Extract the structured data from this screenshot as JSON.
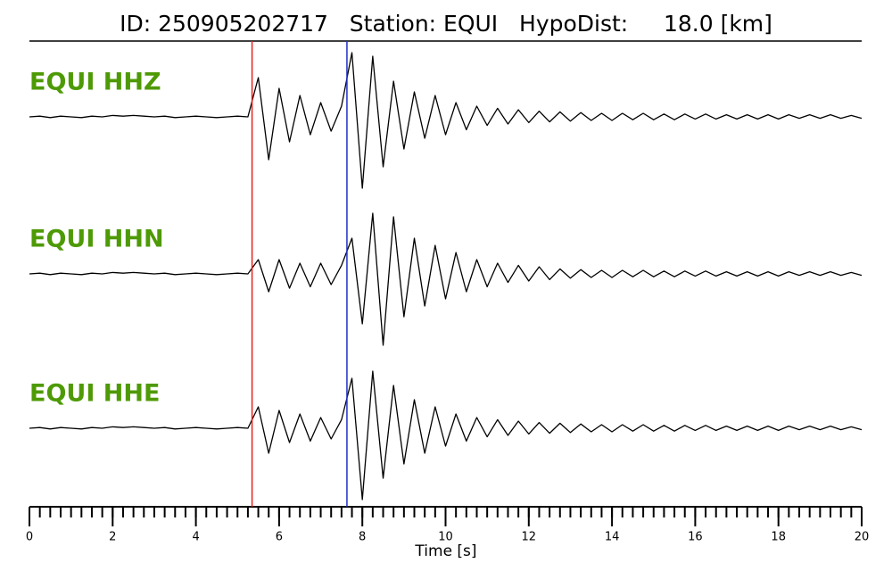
{
  "chart_data": {
    "type": "line",
    "title": "ID: 250905202717   Station: EQUI   HypoDist:     18.0 [km]",
    "xlabel": "Time [s]",
    "xlim": [
      0,
      20
    ],
    "xticks": [
      0,
      2,
      4,
      6,
      8,
      10,
      12,
      14,
      16,
      18,
      20
    ],
    "xminor_interval": 0.25,
    "ylim": [
      -1,
      1
    ],
    "label_color": "#4e9a06",
    "vlines": [
      {
        "x": 5.35,
        "color": "#e8201c"
      },
      {
        "x": 7.63,
        "color": "#2030c8"
      }
    ],
    "x": [
      0,
      0.25,
      0.5,
      0.75,
      1,
      1.25,
      1.5,
      1.75,
      2,
      2.25,
      2.5,
      2.75,
      3,
      3.25,
      3.5,
      3.75,
      4,
      4.25,
      4.5,
      4.75,
      5,
      5.25,
      5.5,
      5.75,
      6,
      6.25,
      6.5,
      6.75,
      7,
      7.25,
      7.5,
      7.75,
      8,
      8.25,
      8.5,
      8.75,
      9,
      9.25,
      9.5,
      9.75,
      10,
      10.25,
      10.5,
      10.75,
      11,
      11.25,
      11.5,
      11.75,
      12,
      12.25,
      12.5,
      12.75,
      13,
      13.25,
      13.5,
      13.75,
      14,
      14.25,
      14.5,
      14.75,
      15,
      15.25,
      15.5,
      15.75,
      16,
      16.25,
      16.5,
      16.75,
      17,
      17.25,
      17.5,
      17.75,
      18,
      18.25,
      18.5,
      18.75,
      19,
      19.25,
      19.5,
      19.75,
      20
    ],
    "series": [
      {
        "name": "EQUI HHZ",
        "color": "#000000",
        "values": [
          0,
          0.01,
          -0.01,
          0.01,
          0,
          -0.01,
          0.01,
          0,
          0.02,
          0.01,
          0.02,
          0.01,
          0,
          0.01,
          -0.01,
          0,
          0.01,
          0,
          -0.01,
          0,
          0.01,
          0,
          0.55,
          -0.6,
          0.4,
          -0.35,
          0.3,
          -0.25,
          0.2,
          -0.2,
          0.15,
          0.9,
          -1.0,
          0.85,
          -0.7,
          0.5,
          -0.45,
          0.35,
          -0.3,
          0.3,
          -0.25,
          0.2,
          -0.18,
          0.15,
          -0.12,
          0.12,
          -0.1,
          0.1,
          -0.08,
          0.08,
          -0.07,
          0.07,
          -0.06,
          0.06,
          -0.05,
          0.05,
          -0.05,
          0.05,
          -0.04,
          0.05,
          -0.04,
          0.04,
          -0.04,
          0.04,
          -0.03,
          0.04,
          -0.03,
          0.03,
          -0.03,
          0.03,
          -0.03,
          0.03,
          -0.03,
          0.03,
          -0.02,
          0.03,
          -0.02,
          0.03,
          -0.02,
          0.02,
          -0.02
        ]
      },
      {
        "name": "EQUI HHN",
        "color": "#000000",
        "values": [
          0,
          0.01,
          -0.01,
          0.01,
          0,
          -0.01,
          0.01,
          0,
          0.02,
          0.01,
          0.02,
          0.01,
          0,
          0.01,
          -0.01,
          0,
          0.01,
          0,
          -0.01,
          0,
          0.01,
          0,
          0.2,
          -0.25,
          0.2,
          -0.2,
          0.15,
          -0.18,
          0.15,
          -0.15,
          0.12,
          0.5,
          -0.7,
          0.85,
          -1.0,
          0.8,
          -0.6,
          0.5,
          -0.45,
          0.4,
          -0.35,
          0.3,
          -0.25,
          0.2,
          -0.18,
          0.15,
          -0.12,
          0.12,
          -0.1,
          0.1,
          -0.08,
          0.07,
          -0.06,
          0.06,
          -0.05,
          0.05,
          -0.05,
          0.05,
          -0.04,
          0.05,
          -0.04,
          0.04,
          -0.04,
          0.04,
          -0.03,
          0.04,
          -0.03,
          0.03,
          -0.03,
          0.03,
          -0.03,
          0.03,
          -0.03,
          0.03,
          -0.02,
          0.03,
          -0.02,
          0.03,
          -0.02,
          0.02,
          -0.02
        ]
      },
      {
        "name": "EQUI HHE",
        "color": "#000000",
        "values": [
          0,
          0.01,
          -0.01,
          0.01,
          0,
          -0.01,
          0.01,
          0,
          0.02,
          0.01,
          0.02,
          0.01,
          0,
          0.01,
          -0.01,
          0,
          0.01,
          0,
          -0.01,
          0,
          0.01,
          0,
          0.3,
          -0.35,
          0.25,
          -0.2,
          0.2,
          -0.18,
          0.15,
          -0.15,
          0.12,
          0.7,
          -1.0,
          0.8,
          -0.7,
          0.6,
          -0.5,
          0.4,
          -0.35,
          0.3,
          -0.25,
          0.2,
          -0.18,
          0.15,
          -0.12,
          0.12,
          -0.1,
          0.1,
          -0.08,
          0.08,
          -0.07,
          0.07,
          -0.06,
          0.06,
          -0.05,
          0.05,
          -0.05,
          0.05,
          -0.04,
          0.05,
          -0.04,
          0.04,
          -0.04,
          0.04,
          -0.03,
          0.04,
          -0.03,
          0.03,
          -0.03,
          0.03,
          -0.03,
          0.03,
          -0.03,
          0.03,
          -0.02,
          0.03,
          -0.02,
          0.03,
          -0.02,
          0.02,
          -0.02
        ]
      }
    ]
  }
}
